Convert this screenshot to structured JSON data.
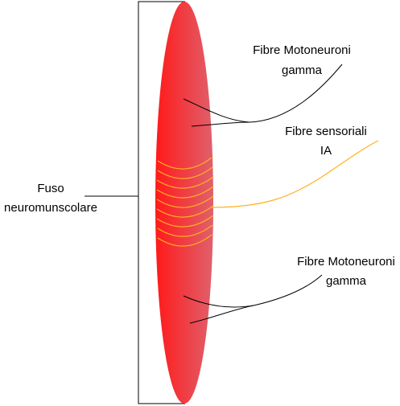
{
  "labels": [
    {
      "lines": [
        "Fuso",
        "neuromunscolare"
      ]
    },
    {
      "lines": [
        "Fibre Motoneuroni",
        "gamma"
      ]
    },
    {
      "lines": [
        "Fibre sensoriali",
        "IA"
      ]
    },
    {
      "lines": [
        "Fibre Motoneuroni",
        "gamma"
      ]
    }
  ]
}
